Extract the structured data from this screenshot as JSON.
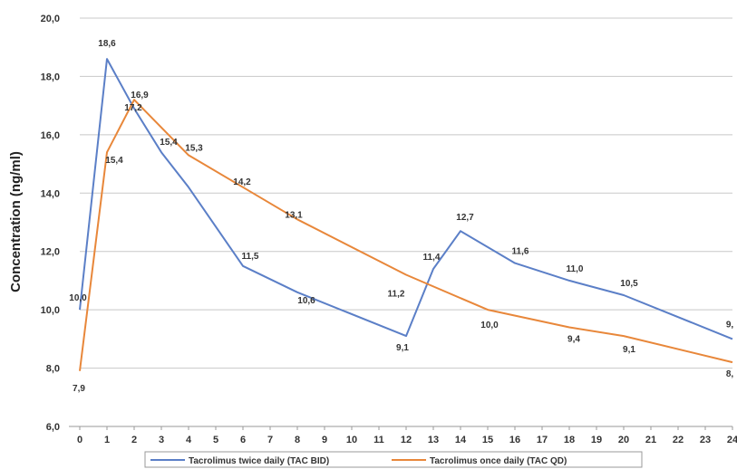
{
  "chart_data": {
    "type": "line",
    "ylabel": "Concentration (ng/ml)",
    "xlabel": "",
    "ylim": [
      6,
      20
    ],
    "y_ticks": [
      "6,0",
      "8,0",
      "10,0",
      "12,0",
      "14,0",
      "16,0",
      "18,0",
      "20,0"
    ],
    "x_ticks": [
      "0",
      "1",
      "2",
      "3",
      "4",
      "5",
      "6",
      "7",
      "8",
      "9",
      "10",
      "11",
      "12",
      "13",
      "14",
      "15",
      "16",
      "17",
      "18",
      "19",
      "20",
      "21",
      "22",
      "23",
      "24"
    ],
    "grid": true,
    "legend_position": "bottom",
    "series": [
      {
        "name": "Tacrolimus twice daily (TAC BID)",
        "color": "#5b7fc7",
        "x": [
          0,
          1,
          2,
          3,
          4,
          6,
          8,
          12,
          13,
          14,
          16,
          18,
          20,
          24
        ],
        "y": [
          10.0,
          18.6,
          16.9,
          15.4,
          14.2,
          11.5,
          10.6,
          9.1,
          11.4,
          12.7,
          11.6,
          11.0,
          10.5,
          9.0
        ],
        "labels": [
          {
            "x": 0,
            "text": "10,0"
          },
          {
            "x": 1,
            "text": "18,6"
          },
          {
            "x": 2,
            "text": "16,9"
          },
          {
            "x": 3,
            "text": "15,4"
          },
          {
            "x": 6,
            "text": "11,5"
          },
          {
            "x": 8,
            "text": "10,6"
          },
          {
            "x": 12,
            "text": "9,1"
          },
          {
            "x": 13,
            "text": "11,4"
          },
          {
            "x": 14,
            "text": "12,7"
          },
          {
            "x": 16,
            "text": "11,6"
          },
          {
            "x": 18,
            "text": "11,0"
          },
          {
            "x": 20,
            "text": "10,5"
          },
          {
            "x": 24,
            "text": "9,"
          }
        ]
      },
      {
        "name": "Tacrolimus once daily (TAC QD)",
        "color": "#e8873a",
        "x": [
          0,
          1,
          2,
          4,
          6,
          8,
          12,
          15,
          18,
          20,
          24
        ],
        "y": [
          7.9,
          15.4,
          17.2,
          15.3,
          14.2,
          13.1,
          11.2,
          10.0,
          9.4,
          9.1,
          8.2
        ],
        "labels": [
          {
            "x": 0,
            "text": "7,9"
          },
          {
            "x": 1,
            "text": "15,4"
          },
          {
            "x": 2,
            "text": "17,2"
          },
          {
            "x": 4,
            "text": "15,3"
          },
          {
            "x": 6,
            "text": "14,2"
          },
          {
            "x": 8,
            "text": "13,1"
          },
          {
            "x": 12,
            "text": "11,2"
          },
          {
            "x": 15,
            "text": "10,0"
          },
          {
            "x": 18,
            "text": "9,4"
          },
          {
            "x": 20,
            "text": "9,1"
          },
          {
            "x": 24,
            "text": "8,"
          }
        ]
      }
    ]
  }
}
